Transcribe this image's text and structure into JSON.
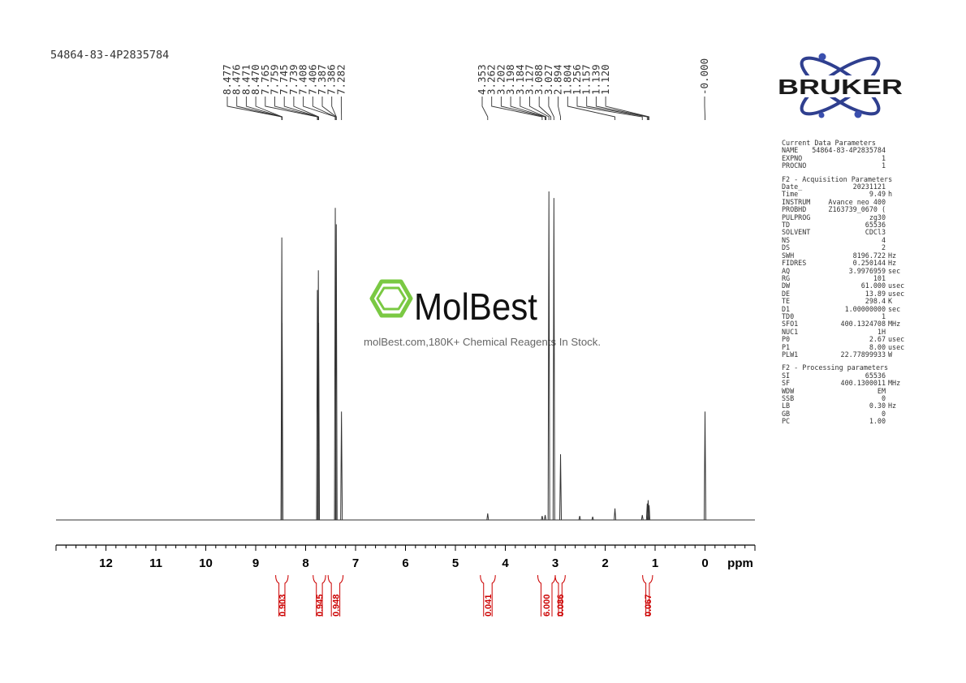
{
  "sample_id": "54864-83-4P2835784",
  "brand": {
    "name": "BRUKER",
    "color": "#1a1a1a",
    "accent": "#2f3f8f",
    "dot_color": "#3a4fae"
  },
  "watermark": {
    "name": "MolBest",
    "tagline": "molBest.com,180K+ Chemical Reagents In Stock.",
    "icon": "benzene-hexagon-icon",
    "icon_color": "#7ac943"
  },
  "colors": {
    "spectrum": "#333333",
    "axis": "#000000",
    "integral": "#cc0000"
  },
  "chart_data": {
    "type": "line",
    "xlabel": "ppm",
    "xlim": [
      13.0,
      -1.0
    ],
    "x_reversed": true,
    "x_ticks": [
      12,
      11,
      10,
      9,
      8,
      7,
      6,
      5,
      4,
      3,
      2,
      1,
      0
    ],
    "grid": false,
    "peaks": [
      {
        "ppm": 8.477,
        "h": 0.86
      },
      {
        "ppm": 8.471,
        "h": 0.6
      },
      {
        "ppm": 7.765,
        "h": 0.7
      },
      {
        "ppm": 7.745,
        "h": 0.76
      },
      {
        "ppm": 7.739,
        "h": 0.6
      },
      {
        "ppm": 7.406,
        "h": 0.95
      },
      {
        "ppm": 7.386,
        "h": 0.9
      },
      {
        "ppm": 7.282,
        "h": 0.33
      },
      {
        "ppm": 4.353,
        "h": 0.02
      },
      {
        "ppm": 3.262,
        "h": 0.012
      },
      {
        "ppm": 3.202,
        "h": 0.015
      },
      {
        "ppm": 3.127,
        "h": 1.0
      },
      {
        "ppm": 3.027,
        "h": 0.98
      },
      {
        "ppm": 2.894,
        "h": 0.2
      },
      {
        "ppm": 2.51,
        "h": 0.012
      },
      {
        "ppm": 2.25,
        "h": 0.01
      },
      {
        "ppm": 1.804,
        "h": 0.035
      },
      {
        "ppm": 1.256,
        "h": 0.015
      },
      {
        "ppm": 1.157,
        "h": 0.05
      },
      {
        "ppm": 1.139,
        "h": 0.06
      },
      {
        "ppm": 1.12,
        "h": 0.045
      },
      {
        "ppm": 0.0,
        "h": 0.33
      }
    ],
    "peak_label_groups": [
      {
        "labels": [
          "8.477",
          "8.476",
          "8.471",
          "8.470",
          "7.765",
          "7.759",
          "7.745",
          "7.739",
          "7.408",
          "7.406",
          "7.387",
          "7.386",
          "7.282"
        ],
        "anchors": [
          8.477,
          8.476,
          8.471,
          8.47,
          7.765,
          7.759,
          7.745,
          7.739,
          7.408,
          7.406,
          7.387,
          7.386,
          7.282
        ]
      },
      {
        "labels": [
          "4.353",
          "3.262",
          "3.202",
          "3.198",
          "3.184",
          "3.127",
          "3.088",
          "3.027",
          "2.894",
          "1.804",
          "1.256",
          "1.157",
          "1.139",
          "1.120"
        ],
        "anchors": [
          4.353,
          3.262,
          3.202,
          3.198,
          3.184,
          3.127,
          3.088,
          3.027,
          2.894,
          1.804,
          1.256,
          1.157,
          1.139,
          1.12
        ]
      },
      {
        "labels": [
          "-0.000"
        ],
        "anchors": [
          0.0
        ]
      }
    ],
    "integrals": [
      {
        "from": 8.6,
        "to": 8.35,
        "value": "0.903"
      },
      {
        "from": 7.85,
        "to": 7.6,
        "value": "0.945"
      },
      {
        "from": 7.55,
        "to": 7.25,
        "value": "0.948"
      },
      {
        "from": 4.5,
        "to": 4.2,
        "value": "0.041"
      },
      {
        "from": 3.35,
        "to": 3.0,
        "value": "6.000"
      },
      {
        "from": 3.0,
        "to": 2.8,
        "value": "0.086"
      },
      {
        "from": 1.25,
        "to": 1.05,
        "value": "0.067"
      }
    ]
  },
  "parameters": {
    "current": {
      "title": "Current Data Parameters",
      "rows": [
        {
          "key": "NAME",
          "value": "54864-83-4P2835784",
          "unit": ""
        },
        {
          "key": "EXPNO",
          "value": "1",
          "unit": ""
        },
        {
          "key": "PROCNO",
          "value": "1",
          "unit": ""
        }
      ]
    },
    "acquisition": {
      "title": "F2 - Acquisition Parameters",
      "rows": [
        {
          "key": "Date_",
          "value": "20231121",
          "unit": ""
        },
        {
          "key": "Time",
          "value": "9.49",
          "unit": "h"
        },
        {
          "key": "INSTRUM",
          "value": "Avance neo 400",
          "unit": ""
        },
        {
          "key": "PROBHD",
          "value": "Z163739_0670 (",
          "unit": ""
        },
        {
          "key": "PULPROG",
          "value": "zg30",
          "unit": ""
        },
        {
          "key": "TD",
          "value": "65536",
          "unit": ""
        },
        {
          "key": "SOLVENT",
          "value": "CDCl3",
          "unit": ""
        },
        {
          "key": "NS",
          "value": "4",
          "unit": ""
        },
        {
          "key": "DS",
          "value": "2",
          "unit": ""
        },
        {
          "key": "SWH",
          "value": "8196.722",
          "unit": "Hz"
        },
        {
          "key": "FIDRES",
          "value": "0.250144",
          "unit": "Hz"
        },
        {
          "key": "AQ",
          "value": "3.9976959",
          "unit": "sec"
        },
        {
          "key": "RG",
          "value": "101",
          "unit": ""
        },
        {
          "key": "DW",
          "value": "61.000",
          "unit": "usec"
        },
        {
          "key": "DE",
          "value": "13.89",
          "unit": "usec"
        },
        {
          "key": "TE",
          "value": "298.4",
          "unit": "K"
        },
        {
          "key": "D1",
          "value": "1.00000000",
          "unit": "sec"
        },
        {
          "key": "TD0",
          "value": "1",
          "unit": ""
        },
        {
          "key": "SFO1",
          "value": "400.1324708",
          "unit": "MHz"
        },
        {
          "key": "NUC1",
          "value": "1H",
          "unit": ""
        },
        {
          "key": "P0",
          "value": "2.67",
          "unit": "usec"
        },
        {
          "key": "P1",
          "value": "8.00",
          "unit": "usec"
        },
        {
          "key": "PLW1",
          "value": "22.77899933",
          "unit": "W"
        }
      ]
    },
    "processing": {
      "title": "F2 - Processing parameters",
      "rows": [
        {
          "key": "SI",
          "value": "65536",
          "unit": ""
        },
        {
          "key": "SF",
          "value": "400.1300011",
          "unit": "MHz"
        },
        {
          "key": "WDW",
          "value": "EM",
          "unit": ""
        },
        {
          "key": "SSB",
          "value": "0",
          "unit": ""
        },
        {
          "key": "LB",
          "value": "0.30",
          "unit": "Hz"
        },
        {
          "key": "GB",
          "value": "0",
          "unit": ""
        },
        {
          "key": "PC",
          "value": "1.00",
          "unit": ""
        }
      ]
    }
  }
}
